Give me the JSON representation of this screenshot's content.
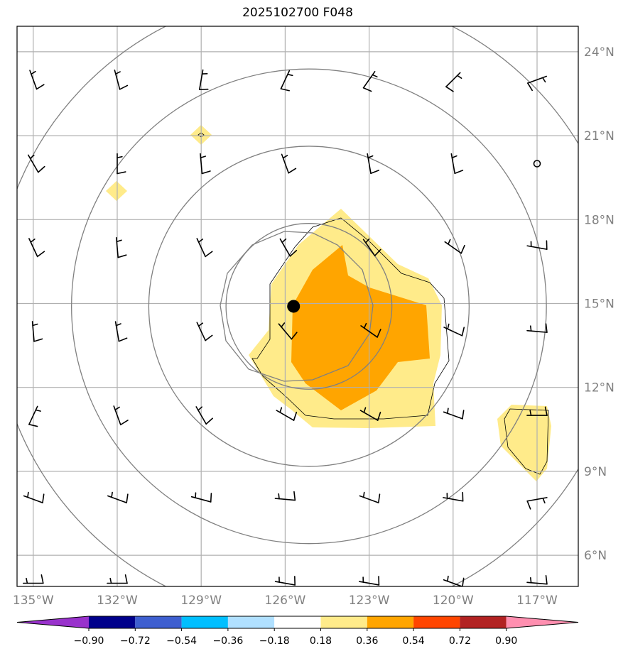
{
  "title": "2025102700 F048",
  "map": {
    "lon_range": [
      -135.6,
      -115.8
    ],
    "lat_range": [
      4.9,
      24.8
    ],
    "lon_labels": [
      "135°W",
      "132°W",
      "129°W",
      "126°W",
      "123°W",
      "120°W",
      "117°W"
    ],
    "lat_labels": [
      "24°N",
      "21°N",
      "18°N",
      "15°N",
      "12°N",
      "9°N",
      "6°N"
    ],
    "storm_center": {
      "lon": -125.7,
      "lat": 14.9
    },
    "calm_marker": {
      "lon": -117.0,
      "lat": 20.0
    },
    "range_ring_radii_deg": [
      3,
      6,
      9,
      12
    ]
  },
  "colorbar": {
    "ticks": [
      "−0.90",
      "−0.72",
      "−0.54",
      "−0.36",
      "−0.18",
      "0.18",
      "0.36",
      "0.54",
      "0.72",
      "0.90"
    ],
    "colors": [
      "#9932cc",
      "#00008b",
      "#3e5fd0",
      "#00bfff",
      "#b0e0ff",
      "#ffffff",
      "#ffeb8a",
      "#ffa500",
      "#ff4500",
      "#b22222",
      "#ff8fb0"
    ]
  }
}
